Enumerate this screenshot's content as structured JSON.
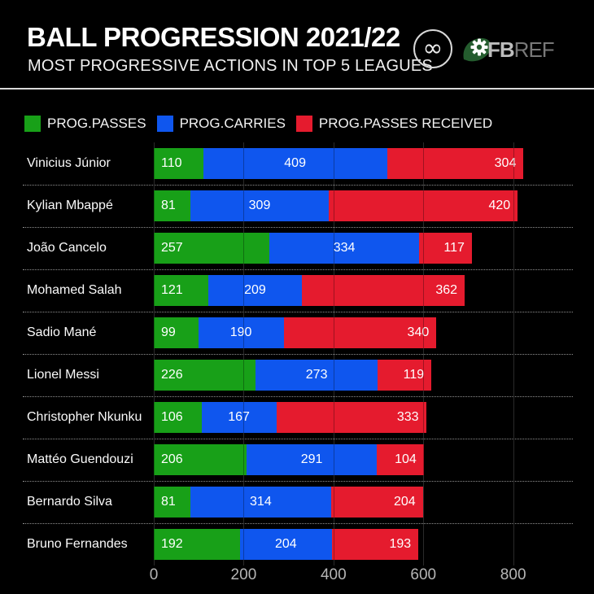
{
  "header": {
    "title": "BALL PROGRESSION 2021/22",
    "subtitle": "MOST PROGRESSIVE ACTIONS IN TOP 5 LEAGUES",
    "infinity_symbol": "∞",
    "brand_fb": "FB",
    "brand_ref": "REF"
  },
  "legend": {
    "items": [
      {
        "label": "PROG.PASSES",
        "color": "#18a018"
      },
      {
        "label": "PROG.CARRIES",
        "color": "#0f56ee"
      },
      {
        "label": "PROG.PASSES RECEIVED",
        "color": "#e51b2e"
      }
    ]
  },
  "chart_data": {
    "type": "bar",
    "orientation": "horizontal",
    "stacked": true,
    "title": "BALL PROGRESSION 2021/22",
    "subtitle": "MOST PROGRESSIVE ACTIONS IN TOP 5 LEAGUES",
    "categories": [
      "Vinicius Júnior",
      "Kylian Mbappé",
      "João Cancelo",
      "Mohamed Salah",
      "Sadio Mané",
      "Lionel Messi",
      "Christopher Nkunku",
      "Mattéo Guendouzi",
      "Bernardo Silva",
      "Bruno Fernandes"
    ],
    "series": [
      {
        "name": "PROG.PASSES",
        "color": "#18a018",
        "values": [
          110,
          81,
          257,
          121,
          99,
          226,
          106,
          206,
          81,
          192
        ]
      },
      {
        "name": "PROG.CARRIES",
        "color": "#0f56ee",
        "values": [
          409,
          309,
          334,
          209,
          190,
          273,
          167,
          291,
          314,
          204
        ]
      },
      {
        "name": "PROG.PASSES RECEIVED",
        "color": "#e51b2e",
        "values": [
          304,
          420,
          117,
          362,
          340,
          119,
          333,
          104,
          204,
          193
        ]
      }
    ],
    "totals": [
      823,
      810,
      708,
      692,
      629,
      618,
      606,
      601,
      599,
      589
    ],
    "xlim": [
      0,
      960
    ],
    "xticks": [
      0,
      200,
      400,
      600,
      800
    ],
    "grid": "vertical",
    "legend_position": "top",
    "value_labels": true
  },
  "colors": {
    "background": "#000000",
    "grid": "#3d3d3d",
    "axis_text": "#b5b5b5",
    "text": "#f5f5f5",
    "divider": "#d9d9d9",
    "separator": "#8f8f8f",
    "fbref_green": "#245c2e"
  }
}
